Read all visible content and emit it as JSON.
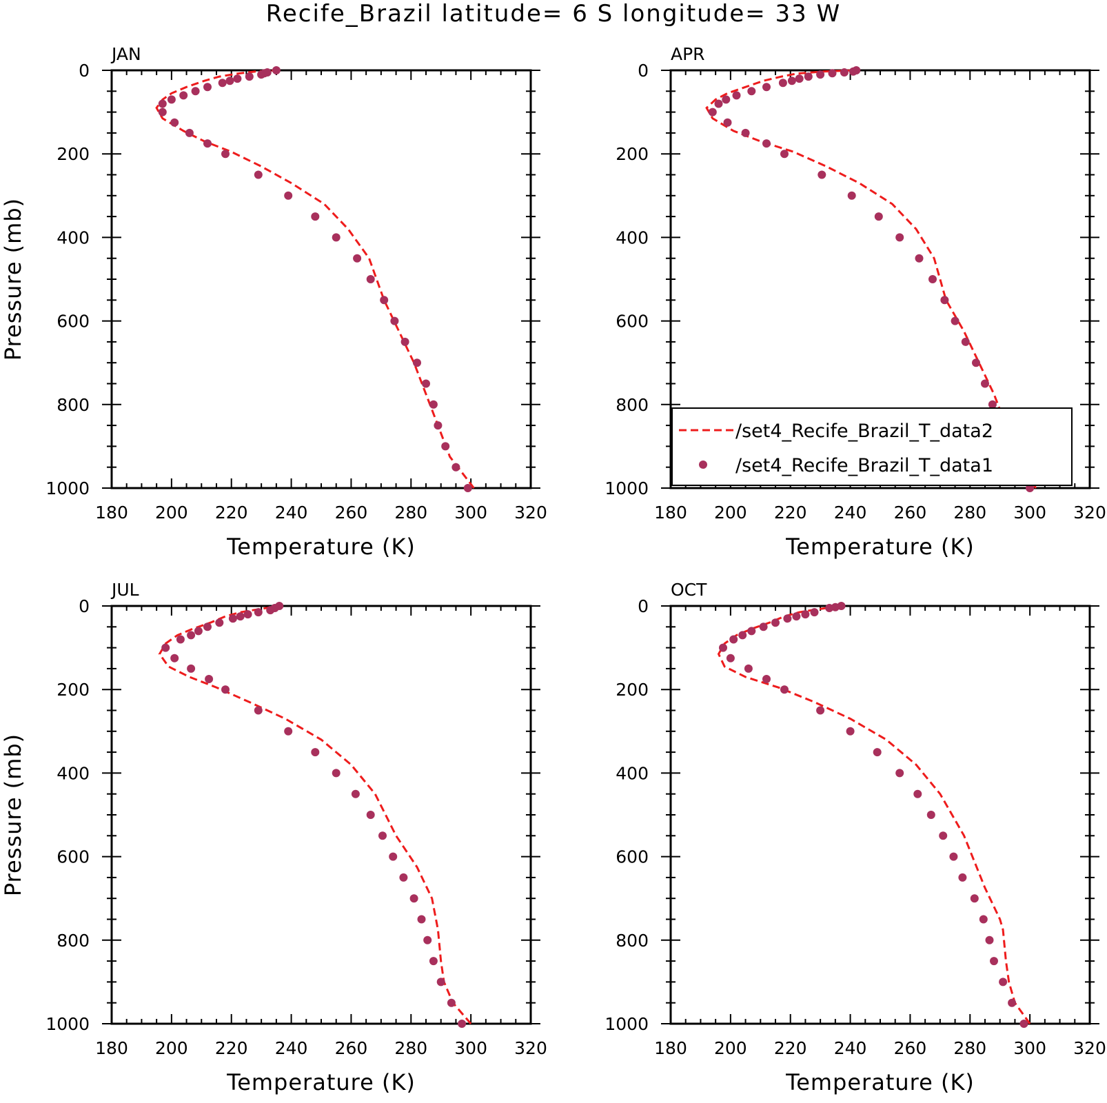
{
  "title": "Recife_Brazil  latitude= 6 S longitude= 33 W",
  "colors": {
    "data2_line": "#ee1c1c",
    "data1_marker": "#a8305c",
    "axis": "#000000"
  },
  "chart_data": [
    {
      "type": "scatter",
      "title": "JAN",
      "xlabel": "Temperature (K)",
      "ylabel": "Pressure (mb)",
      "xlim": [
        180,
        320
      ],
      "ylim": [
        1000,
        0
      ],
      "xticks": [
        "180",
        "200",
        "220",
        "240",
        "260",
        "280",
        "300",
        "320"
      ],
      "yticks": [
        "0",
        "200",
        "400",
        "600",
        "800",
        "1000"
      ],
      "series": [
        {
          "name": "/set4_Recife_Brazil_T_data2",
          "style": "dashed-line",
          "x": [
            301,
            293,
            289,
            285,
            281,
            276,
            271,
            266,
            259,
            251,
            240,
            230,
            220,
            211,
            204,
            197,
            195,
            197,
            200,
            205,
            211,
            216,
            222,
            228,
            235
          ],
          "y": [
            1000,
            925,
            850,
            775,
            700,
            625,
            550,
            450,
            380,
            320,
            270,
            230,
            195,
            170,
            145,
            115,
            90,
            70,
            55,
            40,
            25,
            15,
            8,
            3,
            0
          ]
        },
        {
          "name": "/set4_Recife_Brazil_T_data1",
          "style": "markers",
          "x": [
            299,
            295,
            291.5,
            289,
            287.5,
            285,
            282,
            278,
            274.5,
            271,
            266.5,
            262,
            255,
            248,
            239,
            229,
            218,
            212,
            206,
            201,
            197,
            197,
            200,
            204,
            208,
            212,
            217,
            219.5,
            222,
            226,
            230,
            231,
            232,
            235
          ],
          "y": [
            1000,
            950,
            900,
            850,
            800,
            750,
            700,
            650,
            600,
            550,
            500,
            450,
            400,
            350,
            300,
            250,
            200,
            175,
            150,
            125,
            100,
            80,
            70,
            60,
            50,
            40,
            30,
            25,
            20,
            15,
            10,
            7,
            5,
            0
          ]
        }
      ]
    },
    {
      "type": "scatter",
      "title": "APR",
      "xlabel": "Temperature (K)",
      "ylabel": "",
      "xlim": [
        180,
        320
      ],
      "ylim": [
        1000,
        0
      ],
      "xticks": [
        "180",
        "200",
        "220",
        "240",
        "260",
        "280",
        "300",
        "320"
      ],
      "yticks": [
        "0",
        "200",
        "400",
        "600",
        "800",
        "1000"
      ],
      "legend": {
        "placement": "bottom-right"
      },
      "series": [
        {
          "name": "/set4_Recife_Brazil_T_data2",
          "style": "dashed-line",
          "x": [
            302,
            296,
            292,
            288,
            283,
            278,
            272,
            268,
            262,
            254,
            243,
            232,
            221,
            210,
            201,
            194,
            192,
            195,
            199,
            205,
            211,
            217,
            222,
            231,
            241
          ],
          "y": [
            1000,
            925,
            850,
            775,
            700,
            625,
            550,
            450,
            380,
            320,
            270,
            230,
            195,
            170,
            145,
            115,
            90,
            70,
            55,
            40,
            25,
            15,
            8,
            3,
            0
          ]
        },
        {
          "name": "/set4_Recife_Brazil_T_data1",
          "style": "markers",
          "x": [
            300,
            296,
            293,
            290,
            287.5,
            285,
            282,
            278.5,
            275,
            271.5,
            267.5,
            263,
            256.5,
            249.5,
            240.5,
            230.5,
            218,
            212,
            205,
            199,
            194,
            196,
            198.5,
            202,
            207,
            212,
            217.5,
            220.5,
            223,
            226,
            230,
            234,
            238,
            241,
            242
          ],
          "y": [
            1000,
            950,
            900,
            850,
            800,
            750,
            700,
            650,
            600,
            550,
            500,
            450,
            400,
            350,
            300,
            250,
            200,
            175,
            150,
            125,
            100,
            80,
            70,
            60,
            50,
            40,
            30,
            25,
            20,
            15,
            10,
            7,
            5,
            3,
            0
          ]
        }
      ]
    },
    {
      "type": "scatter",
      "title": "JUL",
      "xlabel": "Temperature (K)",
      "ylabel": "Pressure (mb)",
      "xlim": [
        180,
        320
      ],
      "ylim": [
        1000,
        0
      ],
      "xticks": [
        "180",
        "200",
        "220",
        "240",
        "260",
        "280",
        "300",
        "320"
      ],
      "yticks": [
        "0",
        "200",
        "400",
        "600",
        "800",
        "1000"
      ],
      "series": [
        {
          "name": "/set4_Recife_Brazil_T_data2",
          "style": "dashed-line",
          "x": [
            300,
            294,
            291,
            290,
            289,
            287,
            282,
            275,
            268,
            260,
            250,
            238,
            226,
            215,
            206,
            199,
            196,
            198,
            202,
            207,
            213,
            218,
            223,
            229,
            236
          ],
          "y": [
            1000,
            950,
            900,
            850,
            775,
            700,
            625,
            550,
            450,
            380,
            320,
            270,
            230,
            195,
            170,
            145,
            115,
            90,
            70,
            55,
            40,
            25,
            15,
            8,
            0
          ]
        },
        {
          "name": "/set4_Recife_Brazil_T_data1",
          "style": "markers",
          "x": [
            297,
            293.5,
            290,
            287.5,
            285.5,
            283.5,
            281,
            277.5,
            274,
            270.5,
            266.5,
            261.5,
            255,
            248,
            239,
            229,
            218,
            212.5,
            206.5,
            201,
            198,
            203,
            206.5,
            209,
            212,
            216,
            220.5,
            223,
            225.5,
            229,
            233,
            234.5,
            236
          ],
          "y": [
            1000,
            950,
            900,
            850,
            800,
            750,
            700,
            650,
            600,
            550,
            500,
            450,
            400,
            350,
            300,
            250,
            200,
            175,
            150,
            125,
            100,
            80,
            70,
            60,
            50,
            40,
            30,
            25,
            20,
            15,
            10,
            5,
            0
          ]
        }
      ]
    },
    {
      "type": "scatter",
      "title": "OCT",
      "xlabel": "Temperature (K)",
      "ylabel": "",
      "xlim": [
        180,
        320
      ],
      "ylim": [
        1000,
        0
      ],
      "xticks": [
        "180",
        "200",
        "220",
        "240",
        "260",
        "280",
        "300",
        "320"
      ],
      "yticks": [
        "0",
        "200",
        "400",
        "600",
        "800",
        "1000"
      ],
      "series": [
        {
          "name": "/set4_Recife_Brazil_T_data2",
          "style": "dashed-line",
          "x": [
            300,
            295,
            293,
            292,
            291,
            290,
            285,
            278,
            270,
            262,
            252,
            240,
            228,
            216,
            205,
            198,
            196,
            198,
            202,
            207,
            213,
            218,
            223,
            229,
            237
          ],
          "y": [
            1000,
            950,
            900,
            850,
            775,
            750,
            675,
            550,
            450,
            380,
            320,
            270,
            230,
            195,
            170,
            145,
            115,
            90,
            70,
            55,
            40,
            25,
            15,
            8,
            0
          ]
        },
        {
          "name": "/set4_Recife_Brazil_T_data1",
          "style": "markers",
          "x": [
            298,
            294,
            291,
            288,
            286.5,
            284.5,
            281.5,
            277.5,
            274.5,
            271,
            267,
            262.5,
            256.5,
            249,
            240,
            230,
            218,
            212,
            206,
            200,
            197.5,
            201,
            204,
            207,
            211,
            215,
            219,
            222,
            225,
            228,
            233,
            235,
            237
          ],
          "y": [
            1000,
            950,
            900,
            850,
            800,
            750,
            700,
            650,
            600,
            550,
            500,
            450,
            400,
            350,
            300,
            250,
            200,
            175,
            150,
            125,
            100,
            80,
            70,
            60,
            50,
            40,
            30,
            25,
            20,
            15,
            5,
            3,
            0
          ]
        }
      ]
    }
  ]
}
